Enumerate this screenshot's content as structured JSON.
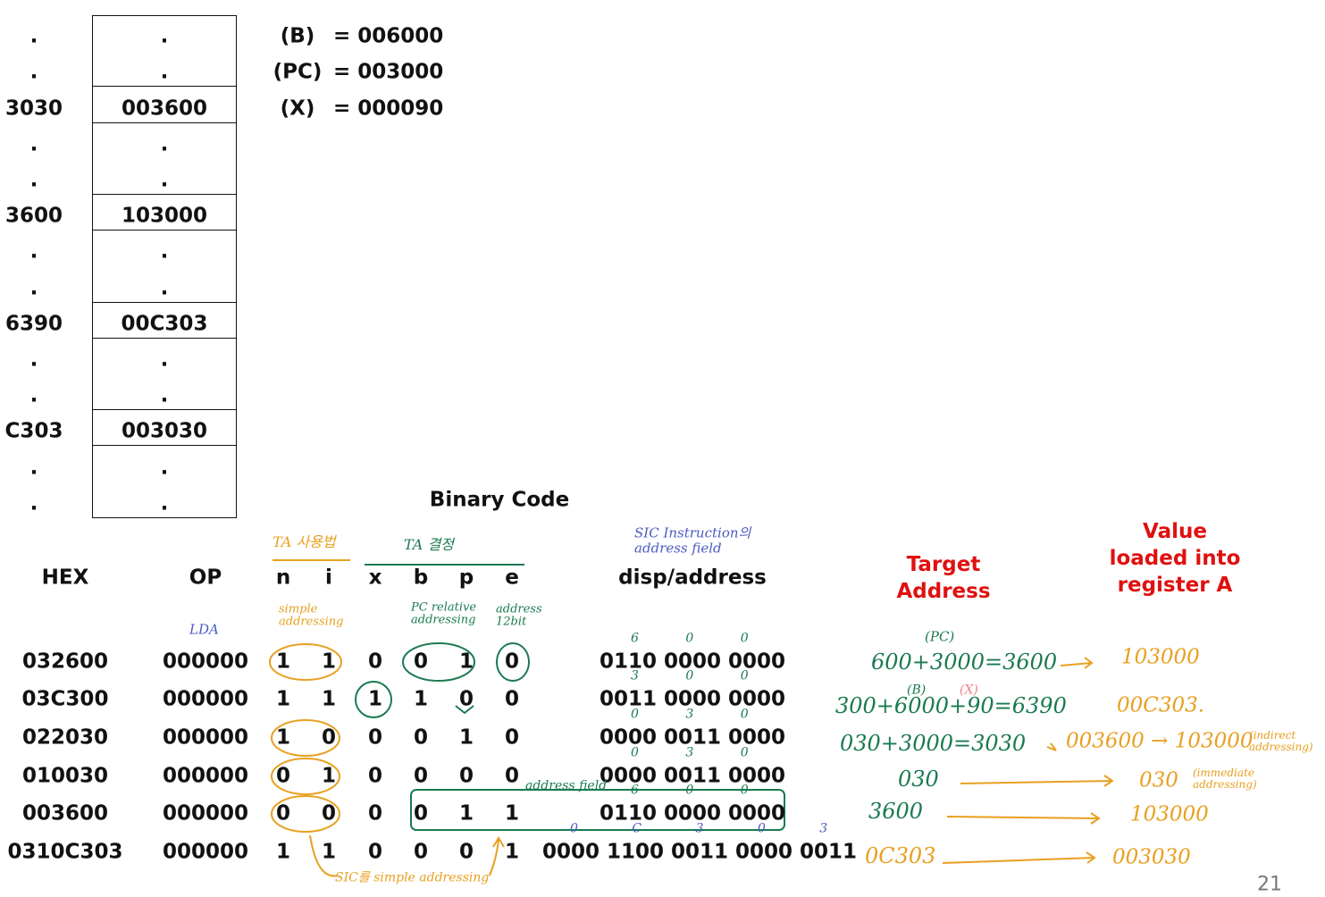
{
  "memory": {
    "addresses": [
      ".",
      ".",
      "3030",
      ".",
      ".",
      "3600",
      ".",
      ".",
      "6390",
      ".",
      ".",
      "C303",
      ".",
      "."
    ],
    "contents": [
      ".",
      ".",
      "003600",
      ".",
      ".",
      "103000",
      ".",
      ".",
      "00C303",
      ".",
      ".",
      "003030",
      ".",
      "."
    ]
  },
  "registers": [
    {
      "name": "(B)",
      "value": "= 006000"
    },
    {
      "name": "(PC)",
      "value": "= 003000"
    },
    {
      "name": "(X)",
      "value": "= 000090"
    }
  ],
  "table": {
    "title": "Binary Code",
    "headers": [
      "HEX",
      "OP",
      "n",
      "i",
      "x",
      "b",
      "p",
      "e",
      "disp/address",
      "Target Address",
      "Value loaded into register A"
    ],
    "rows": [
      [
        "032600",
        "000000",
        "1",
        "1",
        "0",
        "0",
        "1",
        "0",
        "0110 0000 0000"
      ],
      [
        "03C300",
        "000000",
        "1",
        "1",
        "1",
        "1",
        "0",
        "0",
        "0011 0000 0000"
      ],
      [
        "022030",
        "000000",
        "1",
        "0",
        "0",
        "0",
        "1",
        "0",
        "0000 0011 0000"
      ],
      [
        "010030",
        "000000",
        "0",
        "1",
        "0",
        "0",
        "0",
        "0",
        "0000 0011 0000"
      ],
      [
        "003600",
        "000000",
        "0",
        "0",
        "0",
        "0",
        "1",
        "1",
        "0110 0000 0000"
      ],
      [
        "0310C303",
        "000000",
        "1",
        "1",
        "0",
        "0",
        "0",
        "1",
        "0000 1100 0011 0000 0011"
      ]
    ]
  },
  "annotations": {
    "notes": [
      "TA 사용법",
      "TA 결정",
      "SIC Instruction의 address field",
      "LDA",
      "simple addressing",
      "PC relative addressing",
      "address 12bit",
      "address field",
      "SIC를 simple addressing",
      "(PC)",
      "(B)",
      "(X)",
      "(indirect addressing)",
      "(immediate addressing)"
    ],
    "target_notes": [
      "600+3000=3600",
      "300+6000+90=6390",
      "030+3000=3030",
      "030",
      "3600",
      "0C303"
    ],
    "value_notes": [
      "103000",
      "00C303.",
      "003600 → 103000",
      "030",
      "103000",
      "003030"
    ],
    "disp_hints": [
      "6 0 0",
      "3 0 0",
      "0 3 0",
      "0 3 0",
      "6 0 0",
      "0 C 3 0 3"
    ]
  },
  "page_number": "21"
}
